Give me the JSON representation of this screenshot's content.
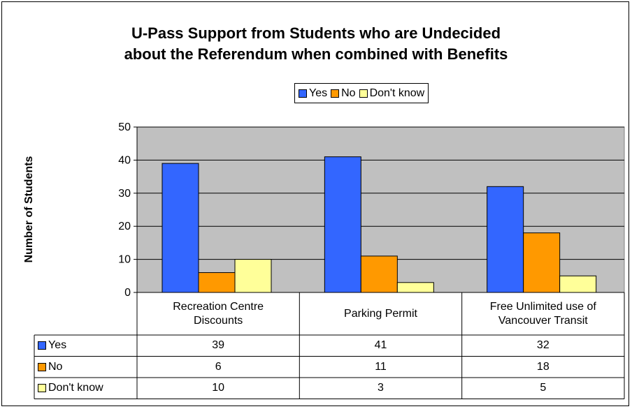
{
  "chart_data": {
    "type": "bar",
    "title_lines": [
      "U-Pass Support from Students who are Undecided",
      "about the Referendum when combined with Benefits"
    ],
    "ylabel": "Number of Students",
    "ylim": [
      0,
      50
    ],
    "yticks": [
      "0",
      "10",
      "20",
      "30",
      "40",
      "50"
    ],
    "categories": [
      [
        "Recreation Centre",
        "Discounts"
      ],
      [
        "Parking Permit"
      ],
      [
        "Free Unlimited use of",
        "Vancouver Transit"
      ]
    ],
    "series": [
      {
        "name": "Yes",
        "color": "#3366ff",
        "values": [
          39,
          41,
          32
        ]
      },
      {
        "name": "No",
        "color": "#ff9900",
        "values": [
          6,
          11,
          18
        ]
      },
      {
        "name": "Don't know",
        "color": "#ffff99",
        "values": [
          10,
          3,
          5
        ]
      }
    ],
    "legend_position": "top",
    "plot_background": "#c0c0c0",
    "grid": true,
    "data_table": true
  }
}
